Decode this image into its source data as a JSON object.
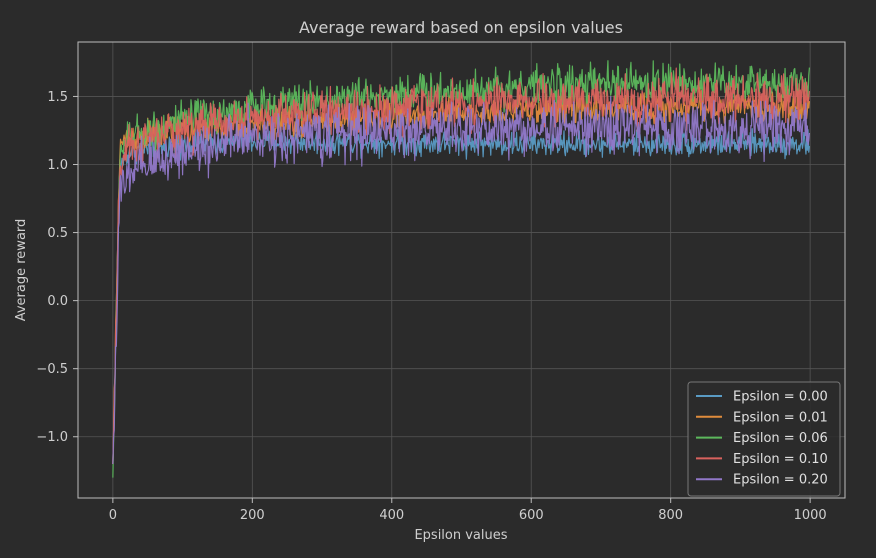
{
  "chart_data": {
    "type": "line",
    "title": "Average reward based on epsilon values",
    "xlabel": "Epsilon values",
    "ylabel": "Average reward",
    "xlim": [
      -50,
      1050
    ],
    "ylim": [
      -1.45,
      1.9
    ],
    "x_ticks": [
      0,
      200,
      400,
      600,
      800,
      1000
    ],
    "y_ticks": [
      -1.0,
      -0.5,
      0.0,
      0.5,
      1.0,
      1.5
    ],
    "x_tick_labels": [
      "0",
      "200",
      "400",
      "600",
      "800",
      "1000"
    ],
    "y_tick_labels": [
      "−1.0",
      "−0.5",
      "0.0",
      "0.5",
      "1.0",
      "1.5"
    ],
    "grid": true,
    "legend_position": "lower-right",
    "num_points": 1000,
    "series": [
      {
        "name": "Epsilon = 0.00",
        "color": "#5a9bc4",
        "start_value": -1.2,
        "x": [
          0,
          10,
          25,
          50,
          100,
          200,
          400,
          600,
          800,
          1000
        ],
        "values": [
          -1.2,
          1.0,
          1.1,
          1.12,
          1.15,
          1.17,
          1.16,
          1.15,
          1.15,
          1.15
        ]
      },
      {
        "name": "Epsilon = 0.01",
        "color": "#e08c3c",
        "start_value": -1.2,
        "x": [
          0,
          10,
          25,
          50,
          100,
          200,
          400,
          600,
          800,
          1000
        ],
        "values": [
          -1.2,
          1.15,
          1.2,
          1.22,
          1.26,
          1.3,
          1.35,
          1.4,
          1.42,
          1.43
        ]
      },
      {
        "name": "Epsilon = 0.06",
        "color": "#5cb85c",
        "start_value": -1.3,
        "x": [
          0,
          10,
          25,
          50,
          100,
          200,
          400,
          600,
          800,
          1000
        ],
        "values": [
          -1.3,
          1.1,
          1.2,
          1.25,
          1.32,
          1.42,
          1.52,
          1.58,
          1.6,
          1.6
        ]
      },
      {
        "name": "Epsilon = 0.10",
        "color": "#d9625e",
        "start_value": -1.2,
        "x": [
          0,
          10,
          25,
          50,
          100,
          200,
          400,
          600,
          800,
          1000
        ],
        "values": [
          -1.2,
          1.0,
          1.12,
          1.18,
          1.26,
          1.34,
          1.42,
          1.46,
          1.48,
          1.49
        ]
      },
      {
        "name": "Epsilon = 0.20",
        "color": "#9178c9",
        "start_value": -1.2,
        "x": [
          0,
          10,
          25,
          50,
          100,
          200,
          400,
          600,
          800,
          1000
        ],
        "values": [
          -1.2,
          0.78,
          0.92,
          1.0,
          1.1,
          1.2,
          1.25,
          1.27,
          1.27,
          1.27
        ]
      }
    ]
  }
}
